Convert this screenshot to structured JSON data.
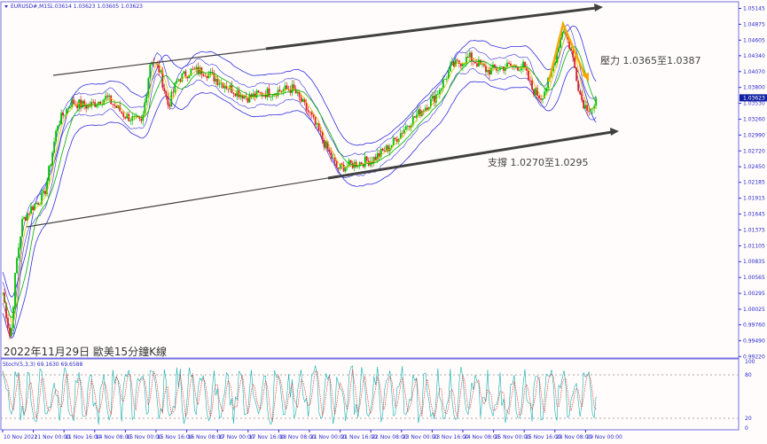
{
  "header": {
    "symbol": "EURUSD#,M15",
    "ohlc": "1.03614 1.03623 1.03605 1.03623"
  },
  "caption": "2022年11月29日 歐美15分鐘K線",
  "annotations": {
    "resistance": "壓力 1.0365至1.0387",
    "support": "支撐 1.0270至1.0295"
  },
  "indicator_label": "Stoch(5,3,3) 69.1630 69.6588",
  "colors": {
    "bull": "#00c000",
    "bear": "#e02020",
    "envelope": "#3030e0",
    "trend": "#404040",
    "arrow": "#f5a800",
    "axis": "#2a2ad0"
  },
  "chart_data": {
    "type": "candlestick",
    "price_ticks": [
      "1.05145",
      "1.04875",
      "1.04605",
      "1.04340",
      "1.04070",
      "1.03800",
      "1.03530",
      "1.03260",
      "1.02990",
      "1.02720",
      "1.02450",
      "1.02185",
      "1.01915",
      "1.01645",
      "1.01375",
      "1.01105",
      "1.00835",
      "1.00565",
      "1.00295",
      "1.00025",
      "0.99760",
      "0.99490",
      "0.99220"
    ],
    "current_price": "1.03623",
    "time_ticks": [
      "10 Nov 2022",
      "11 Nov 00:00",
      "11 Nov 16:00",
      "14 Nov 08:00",
      "15 Nov 00:00",
      "15 Nov 16:00",
      "16 Nov 08:00",
      "17 Nov 00:00",
      "17 Nov 16:00",
      "18 Nov 08:00",
      "21 Nov 00:00",
      "21 Nov 16:00",
      "22 Nov 08:00",
      "23 Nov 00:00",
      "23 Nov 16:00",
      "24 Nov 08:00",
      "25 Nov 00:00",
      "25 Nov 16:00",
      "28 Nov 08:00",
      "29 Nov 00:00"
    ],
    "stoch_ticks": [
      "100",
      "80",
      "20",
      "0"
    ],
    "price_path": [
      [
        0,
        1.0031
      ],
      [
        0.26,
        0.9948
      ],
      [
        0.43,
        1.0076
      ],
      [
        0.64,
        1.0152
      ],
      [
        0.92,
        1.0174
      ],
      [
        1.36,
        1.0197
      ],
      [
        1.79,
        1.0318
      ],
      [
        2.23,
        1.0355
      ],
      [
        2.8,
        1.0348
      ],
      [
        3.38,
        1.0363
      ],
      [
        3.96,
        1.0333
      ],
      [
        4.54,
        1.0318
      ],
      [
        4.83,
        1.0431
      ],
      [
        5.12,
        1.0408
      ],
      [
        5.4,
        1.0348
      ],
      [
        5.69,
        1.0393
      ],
      [
        6.13,
        1.0408
      ],
      [
        6.56,
        1.0408
      ],
      [
        7.43,
        1.0378
      ],
      [
        8.01,
        1.0363
      ],
      [
        8.58,
        1.0371
      ],
      [
        9.45,
        1.0378
      ],
      [
        10.03,
        1.0333
      ],
      [
        10.61,
        1.0272
      ],
      [
        10.9,
        1.0242
      ],
      [
        11.47,
        1.025
      ],
      [
        12.05,
        1.0257
      ],
      [
        12.63,
        1.028
      ],
      [
        13.21,
        1.0318
      ],
      [
        14.08,
        1.0363
      ],
      [
        14.65,
        1.0416
      ],
      [
        15.23,
        1.0431
      ],
      [
        15.81,
        1.0408
      ],
      [
        16.39,
        1.0416
      ],
      [
        16.97,
        1.0416
      ],
      [
        17.25,
        1.0378
      ],
      [
        17.54,
        1.0363
      ],
      [
        17.83,
        1.0393
      ],
      [
        18.27,
        1.0484
      ],
      [
        18.55,
        1.0438
      ],
      [
        18.84,
        1.0363
      ],
      [
        18.99,
        1.0348
      ],
      [
        19.28,
        1.0345
      ],
      [
        19.34,
        1.03623
      ]
    ]
  }
}
